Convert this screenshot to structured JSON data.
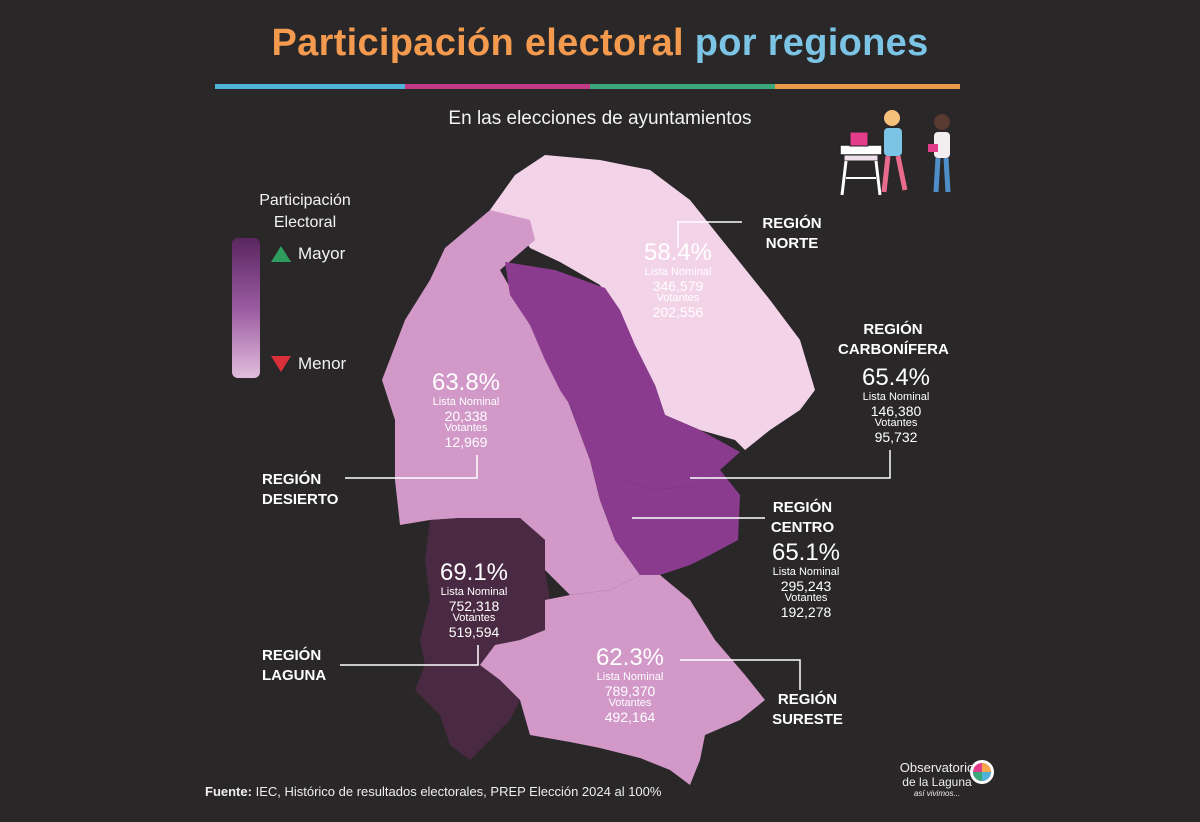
{
  "header": {
    "title_part1": "Participación electoral",
    "title_part2": "por regiones",
    "subtitle": "En las elecciones de ayuntamientos"
  },
  "legend": {
    "title_line1": "Participación",
    "title_line2": "Electoral",
    "high_label": "Mayor",
    "low_label": "Menor",
    "high_icon": "green-up-triangle-icon",
    "low_icon": "red-down-triangle-icon"
  },
  "colors": {
    "background": "#2a2729",
    "norte": "#f2d3e8",
    "desierto": "#d198c8",
    "carbonifera": "#8a3b8e",
    "centro": "#8a3b8e",
    "laguna": "#4a2a42",
    "sureste": "#d198c8",
    "title_orange": "#f39a4f",
    "title_blue": "#7cc4e6"
  },
  "regions": {
    "norte": {
      "name_line1": "REGIÓN",
      "name_line2": "NORTE",
      "participation": "58.4%",
      "lista_label": "Lista Nominal",
      "lista": "346,579",
      "votantes_label": "Votantes",
      "votantes": "202,556"
    },
    "carbonifera": {
      "name_line1": "REGIÓN",
      "name_line2": "CARBONÍFERA",
      "participation": "65.4%",
      "lista_label": "Lista Nominal",
      "lista": "146,380",
      "votantes_label": "Votantes",
      "votantes": "95,732"
    },
    "desierto": {
      "name_line1": "REGIÓN",
      "name_line2": "DESIERTO",
      "participation": "63.8%",
      "lista_label": "Lista Nominal",
      "lista": "20,338",
      "votantes_label": "Votantes",
      "votantes": "12,969"
    },
    "centro": {
      "name_line1": "REGIÓN",
      "name_line2": "CENTRO",
      "participation": "65.1%",
      "lista_label": "Lista Nominal",
      "lista": "295,243",
      "votantes_label": "Votantes",
      "votantes": "192,278"
    },
    "laguna": {
      "name_line1": "REGIÓN",
      "name_line2": "LAGUNA",
      "participation": "69.1%",
      "lista_label": "Lista Nominal",
      "lista": "752,318",
      "votantes_label": "Votantes",
      "votantes": "519,594"
    },
    "sureste": {
      "name_line1": "REGIÓN",
      "name_line2": "SURESTE",
      "participation": "62.3%",
      "lista_label": "Lista Nominal",
      "lista": "789,370",
      "votantes_label": "Votantes",
      "votantes": "492,164"
    }
  },
  "footer": {
    "source_label": "Fuente:",
    "source_text": "IEC, Histórico de resultados electorales, PREP Elección 2024 al 100%",
    "logo_line1": "Observatorio",
    "logo_line2": "de la Laguna",
    "logo_line3": "así vivimos..."
  }
}
